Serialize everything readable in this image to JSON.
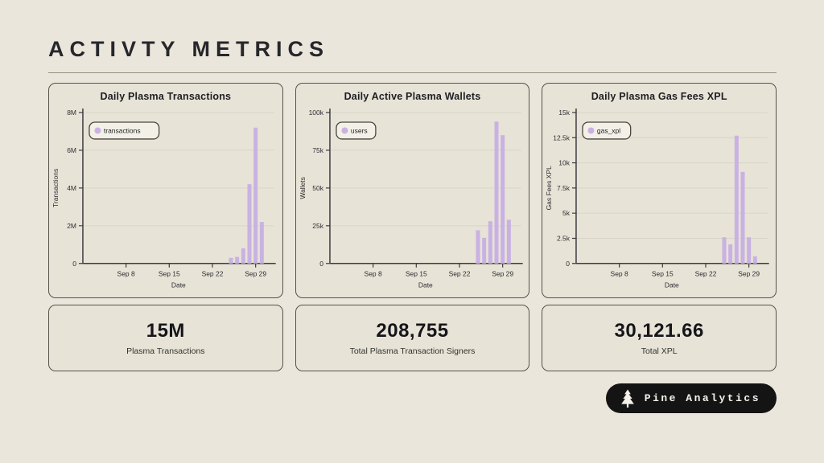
{
  "page": {
    "title": "ACTIVTY METRICS"
  },
  "theme": {
    "background": "#eae6db",
    "card_background": "#e7e3d6",
    "card_border": "#57534b",
    "bar_color": "#c9b2e3",
    "grid_color": "#d9d4c6",
    "axis_color": "#3c3c42",
    "legend_background": "#f3f0e7",
    "badge_background": "#141414",
    "badge_text": "#f5f2ea"
  },
  "chart_data": [
    {
      "type": "bar",
      "title": "Daily Plasma Transactions",
      "legend": "transactions",
      "xlabel": "Date",
      "ylabel": "Transactions",
      "ylim": [
        0,
        8000000
      ],
      "yticks": [
        {
          "value": 0,
          "label": "0"
        },
        {
          "value": 2000000,
          "label": "2M"
        },
        {
          "value": 4000000,
          "label": "4M"
        },
        {
          "value": 6000000,
          "label": "6M"
        },
        {
          "value": 8000000,
          "label": "8M"
        }
      ],
      "xticks": [
        {
          "day": 8,
          "label": "Sep 8"
        },
        {
          "day": 15,
          "label": "Sep 15"
        },
        {
          "day": 22,
          "label": "Sep 22"
        },
        {
          "day": 29,
          "label": "Sep 29"
        }
      ],
      "bars": [
        {
          "date": "Sep 25",
          "day": 25,
          "value": 300000
        },
        {
          "date": "Sep 26",
          "day": 26,
          "value": 350000
        },
        {
          "date": "Sep 27",
          "day": 27,
          "value": 800000
        },
        {
          "date": "Sep 28",
          "day": 28,
          "value": 4200000
        },
        {
          "date": "Sep 29",
          "day": 29,
          "value": 7200000
        },
        {
          "date": "Sep 30",
          "day": 30,
          "value": 2200000
        }
      ]
    },
    {
      "type": "bar",
      "title": "Daily Active Plasma Wallets",
      "legend": "users",
      "xlabel": "Date",
      "ylabel": "Wallets",
      "ylim": [
        0,
        100000
      ],
      "yticks": [
        {
          "value": 0,
          "label": "0"
        },
        {
          "value": 25000,
          "label": "25k"
        },
        {
          "value": 50000,
          "label": "50k"
        },
        {
          "value": 75000,
          "label": "75k"
        },
        {
          "value": 100000,
          "label": "100k"
        }
      ],
      "xticks": [
        {
          "day": 8,
          "label": "Sep 8"
        },
        {
          "day": 15,
          "label": "Sep 15"
        },
        {
          "day": 22,
          "label": "Sep 22"
        },
        {
          "day": 29,
          "label": "Sep 29"
        }
      ],
      "bars": [
        {
          "date": "Sep 25",
          "day": 25,
          "value": 22000
        },
        {
          "date": "Sep 26",
          "day": 26,
          "value": 17000
        },
        {
          "date": "Sep 27",
          "day": 27,
          "value": 28000
        },
        {
          "date": "Sep 28",
          "day": 28,
          "value": 94000
        },
        {
          "date": "Sep 29",
          "day": 29,
          "value": 85000
        },
        {
          "date": "Sep 30",
          "day": 30,
          "value": 29000
        }
      ]
    },
    {
      "type": "bar",
      "title": "Daily Plasma Gas Fees XPL",
      "legend": "gas_xpl",
      "xlabel": "Date",
      "ylabel": "Gas Fees XPL",
      "ylim": [
        0,
        15000
      ],
      "yticks": [
        {
          "value": 0,
          "label": "0"
        },
        {
          "value": 2500,
          "label": "2.5k"
        },
        {
          "value": 5000,
          "label": "5k"
        },
        {
          "value": 7500,
          "label": "7.5k"
        },
        {
          "value": 10000,
          "label": "10k"
        },
        {
          "value": 12500,
          "label": "12.5k"
        },
        {
          "value": 15000,
          "label": "15k"
        }
      ],
      "xticks": [
        {
          "day": 8,
          "label": "Sep 8"
        },
        {
          "day": 15,
          "label": "Sep 15"
        },
        {
          "day": 22,
          "label": "Sep 22"
        },
        {
          "day": 29,
          "label": "Sep 29"
        }
      ],
      "bars": [
        {
          "date": "Sep 25",
          "day": 25,
          "value": 2600
        },
        {
          "date": "Sep 26",
          "day": 26,
          "value": 1900
        },
        {
          "date": "Sep 27",
          "day": 27,
          "value": 12700
        },
        {
          "date": "Sep 28",
          "day": 28,
          "value": 9100
        },
        {
          "date": "Sep 29",
          "day": 29,
          "value": 2600
        },
        {
          "date": "Sep 30",
          "day": 30,
          "value": 700
        }
      ]
    }
  ],
  "stats": [
    {
      "value": "15M",
      "label": "Plasma Transactions"
    },
    {
      "value": "208,755",
      "label": "Total Plasma Transaction Signers"
    },
    {
      "value": "30,121.66",
      "label": "Total XPL"
    }
  ],
  "badge": {
    "label": "Pine Analytics"
  }
}
